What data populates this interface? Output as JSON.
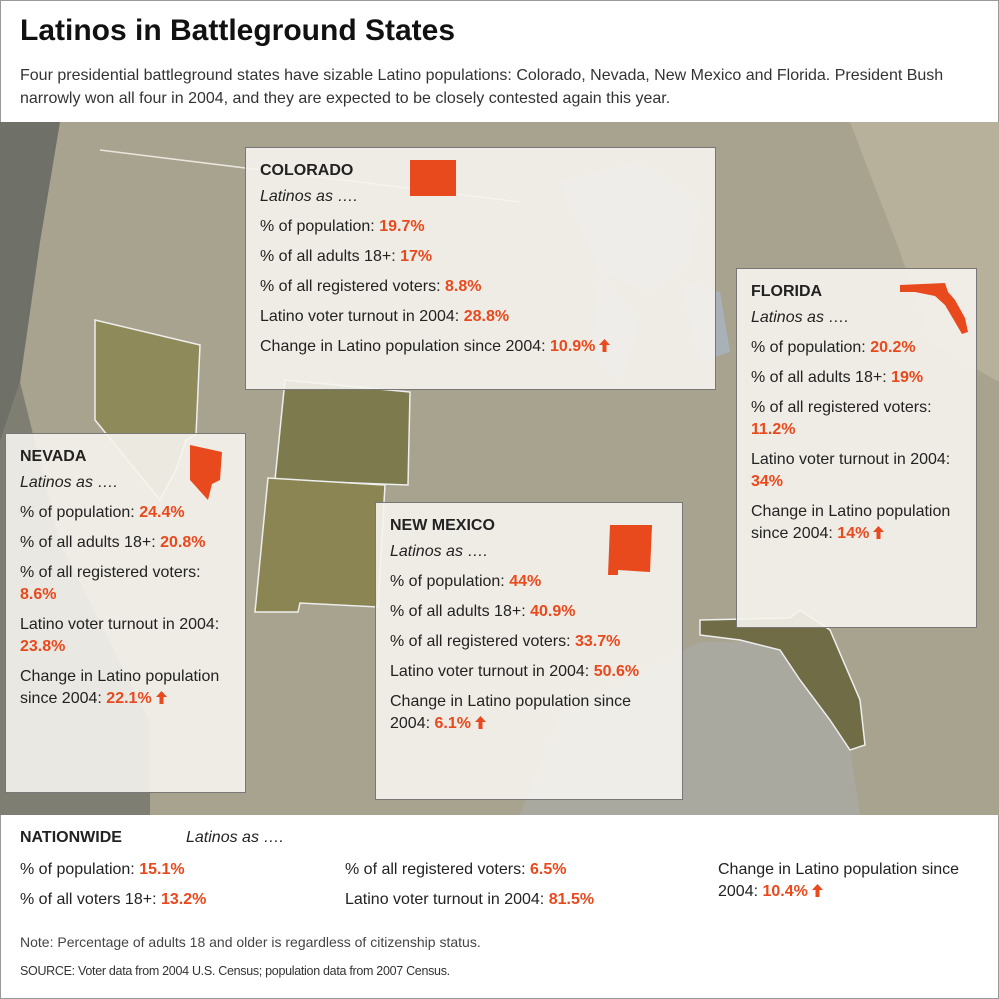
{
  "header": {
    "title": "Latinos in Battleground States",
    "subtitle": "Four presidential battleground states have sizable Latino populations: Colorado, Nevada, New Mexico and Florida. President Bush narrowly won all four in 2004, and they are expected to be closely contested again this year."
  },
  "states": [
    {
      "name": "COLORADO",
      "intro": "Latinos as ….",
      "stats": [
        {
          "label": "% of population:",
          "value": "19.7%"
        },
        {
          "label": "% of all adults 18+:",
          "value": "17%"
        },
        {
          "label": "% of all registered voters:",
          "value": "8.8%"
        },
        {
          "label": "Latino voter turnout in 2004:",
          "value": "28.8%"
        },
        {
          "label": "Change in Latino population since 2004:",
          "value": "10.9%"
        }
      ]
    },
    {
      "name": "FLORIDA",
      "intro": "Latinos as ….",
      "stats": [
        {
          "label": "% of population:",
          "value": "20.2%"
        },
        {
          "label": "% of all adults 18+:",
          "value": "19%"
        },
        {
          "label": "% of all registered voters:",
          "value": "11.2%"
        },
        {
          "label": "Latino voter turnout in 2004:",
          "value": "34%"
        },
        {
          "label": "Change in Latino population since 2004:",
          "value": "14%"
        }
      ]
    },
    {
      "name": "NEVADA",
      "intro": "Latinos as ….",
      "stats": [
        {
          "label": "% of population:",
          "value": "24.4%"
        },
        {
          "label": "% of all adults 18+:",
          "value": "20.8%"
        },
        {
          "label": "% of all registered voters:",
          "value": "8.6%"
        },
        {
          "label": "Latino voter turnout in 2004:",
          "value": "23.8%"
        },
        {
          "label": "Change in Latino population since 2004:",
          "value": "22.1%"
        }
      ]
    },
    {
      "name": "NEW MEXICO",
      "intro": "Latinos as ….",
      "stats": [
        {
          "label": "% of population:",
          "value": "44%"
        },
        {
          "label": "% of all adults 18+:",
          "value": "40.9%"
        },
        {
          "label": "% of all registered voters:",
          "value": "33.7%"
        },
        {
          "label": "Latino voter turnout in 2004:",
          "value": "50.6%"
        },
        {
          "label": "Change in Latino population since 2004:",
          "value": "6.1%"
        }
      ]
    }
  ],
  "nationwide": {
    "name": "NATIONWIDE",
    "intro": "Latinos as ….",
    "stats": [
      {
        "label": "% of population:",
        "value": "15.1%"
      },
      {
        "label": "% of all voters 18+:",
        "value": "13.2%"
      },
      {
        "label": "% of all registered voters:",
        "value": "6.5%"
      },
      {
        "label": "Latino voter turnout in 2004:",
        "value": "81.5%"
      },
      {
        "label": "Change in Latino population since 2004:",
        "value": "10.4%"
      }
    ]
  },
  "note": "Note: Percentage of adults 18 and older is regardless of citizenship status.",
  "source": "SOURCE: Voter data from 2004 U.S. Census; population data from 2007 Census."
}
